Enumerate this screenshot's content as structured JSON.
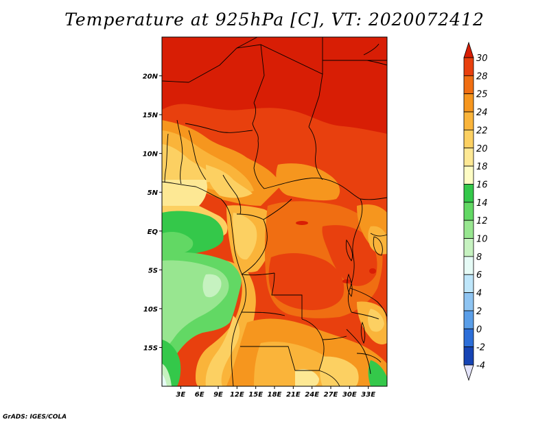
{
  "title": "Temperature at 925hPa [C], VT: 2020072412",
  "footer": "GrADS: IGES/COLA",
  "map": {
    "lon_range": [
      0,
      36
    ],
    "lat_range": [
      -20,
      25
    ],
    "lon_ticks": [
      "3E",
      "6E",
      "9E",
      "12E",
      "15E",
      "18E",
      "21E",
      "24E",
      "27E",
      "30E",
      "33E"
    ],
    "lat_ticks": [
      "20N",
      "15N",
      "10N",
      "5N",
      "EQ",
      "5S",
      "10S",
      "15S"
    ]
  },
  "colorbar": {
    "levels": [
      "30",
      "28",
      "25",
      "24",
      "22",
      "20",
      "18",
      "16",
      "14",
      "12",
      "10",
      "8",
      "6",
      "4",
      "2",
      "0",
      "-2",
      "-4"
    ],
    "colors": [
      "#d81e05",
      "#e8400e",
      "#f06e12",
      "#f6961e",
      "#fab43a",
      "#fcd062",
      "#fde894",
      "#fefcc4",
      "#34c84a",
      "#62d864",
      "#98e690",
      "#c6f2c0",
      "#e6fbf6",
      "#bee6fa",
      "#8ec4f2",
      "#5a9ee8",
      "#2c6ed8",
      "#1644b4",
      "#0c1c82",
      "#e4e4fa"
    ],
    "top_color": "#d81e05",
    "bottom_color": "#e4e4fa"
  },
  "colors": {
    "hot": "#d81e05",
    "very_warm": "#e8400e",
    "warm": "#f06e12",
    "mild_warm": "#f6961e",
    "mild": "#fab43a",
    "pale": "#fcd062",
    "cream": "#fde894",
    "green": "#34c84a",
    "light_green": "#62d864",
    "pale_green": "#98e690",
    "very_pale_green": "#c6f2c0",
    "ice": "#e6fbf6"
  }
}
